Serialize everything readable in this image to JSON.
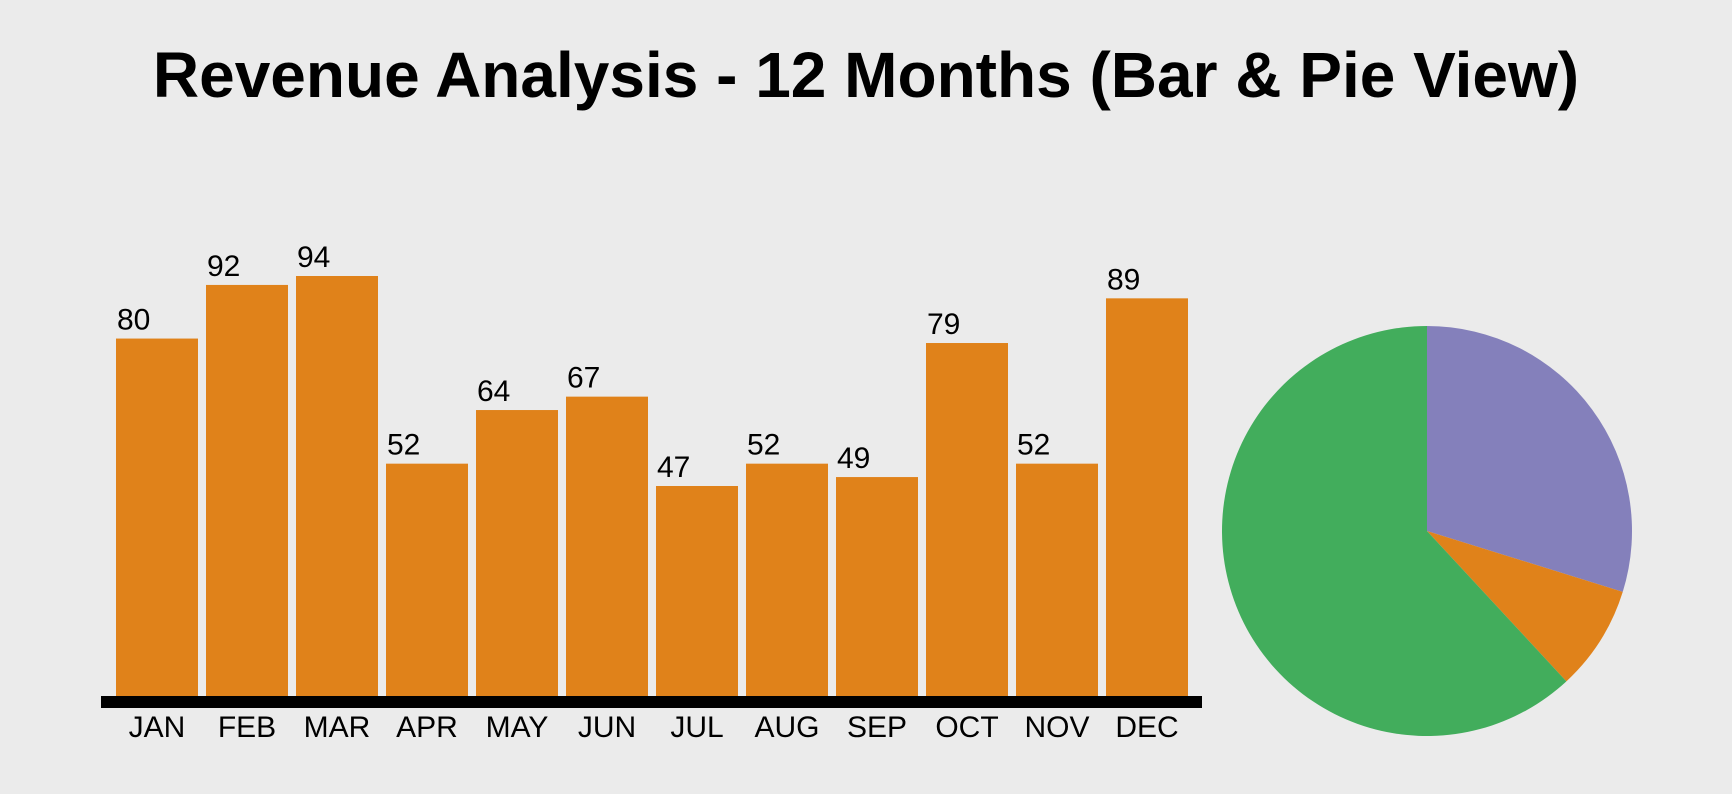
{
  "title": "Revenue Analysis - 12 Months (Bar & Pie View)",
  "chart_data": [
    {
      "type": "bar",
      "categories": [
        "JAN",
        "FEB",
        "MAR",
        "APR",
        "MAY",
        "JUN",
        "JUL",
        "AUG",
        "SEP",
        "OCT",
        "NOV",
        "DEC"
      ],
      "values": [
        80,
        92,
        94,
        52,
        64,
        67,
        47,
        52,
        49,
        79,
        52,
        89
      ],
      "ylim": [
        0,
        94
      ],
      "data_labels": true,
      "grid": false,
      "bar_color": "#e0821a",
      "axis_color": "#000000"
    },
    {
      "type": "pie",
      "values": [
        29.8,
        8.3,
        61.9
      ],
      "colors": [
        "#8480bb",
        "#e0821a",
        "#42ad5c"
      ],
      "labels_shown": false
    }
  ]
}
